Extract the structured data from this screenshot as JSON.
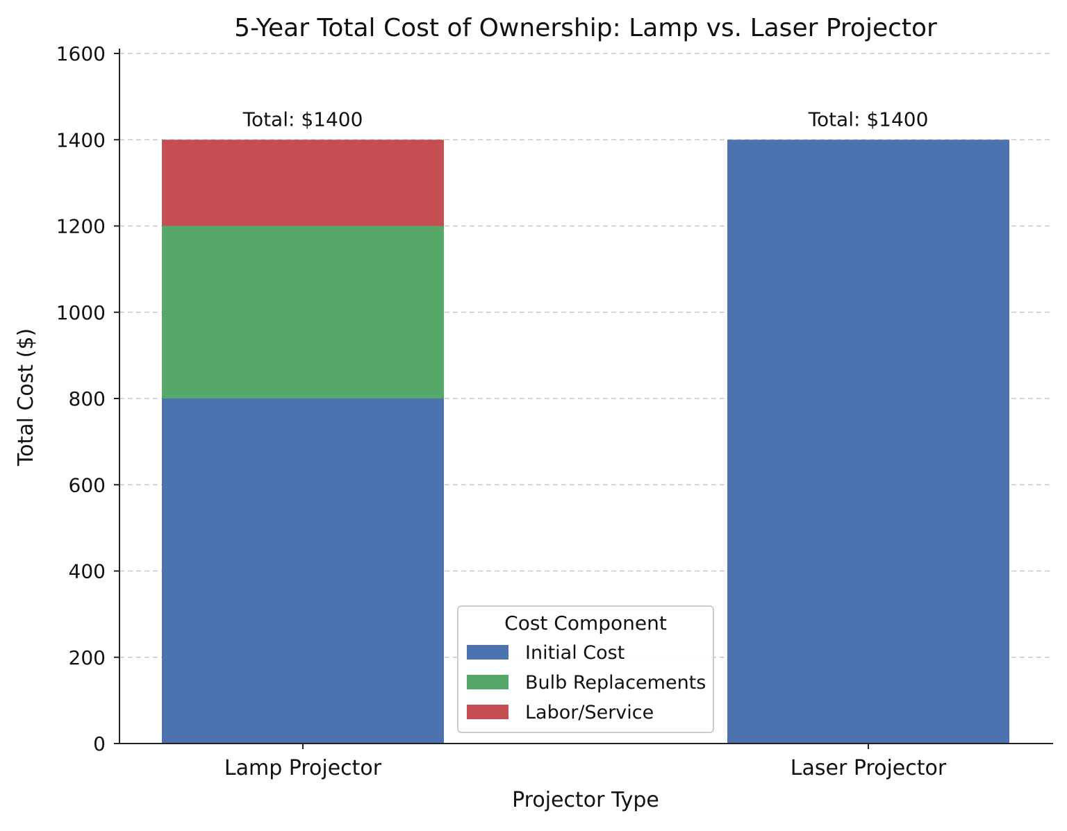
{
  "chart_data": {
    "type": "bar",
    "stacked": true,
    "title": "5-Year Total Cost of Ownership: Lamp vs. Laser Projector",
    "xlabel": "Projector Type",
    "ylabel": "Total Cost ($)",
    "ylim": [
      0,
      1600
    ],
    "yticks": [
      "0",
      "200",
      "400",
      "600",
      "800",
      "1000",
      "1200",
      "1400",
      "1600"
    ],
    "grid": "horizontal dashed",
    "categories": [
      "Lamp Projector",
      "Laser Projector"
    ],
    "series": [
      {
        "name": "Initial Cost",
        "values": [
          800,
          1400
        ],
        "color": "#4C72B0"
      },
      {
        "name": "Bulb Replacements",
        "values": [
          400,
          0
        ],
        "color": "#55A868"
      },
      {
        "name": "Labor/Service",
        "values": [
          200,
          0
        ],
        "color": "#C44E52"
      }
    ],
    "annotations": [
      "Total: $1400",
      "Total: $1400"
    ],
    "legend": {
      "title": "Cost Component",
      "placement": "bottom-center"
    }
  }
}
